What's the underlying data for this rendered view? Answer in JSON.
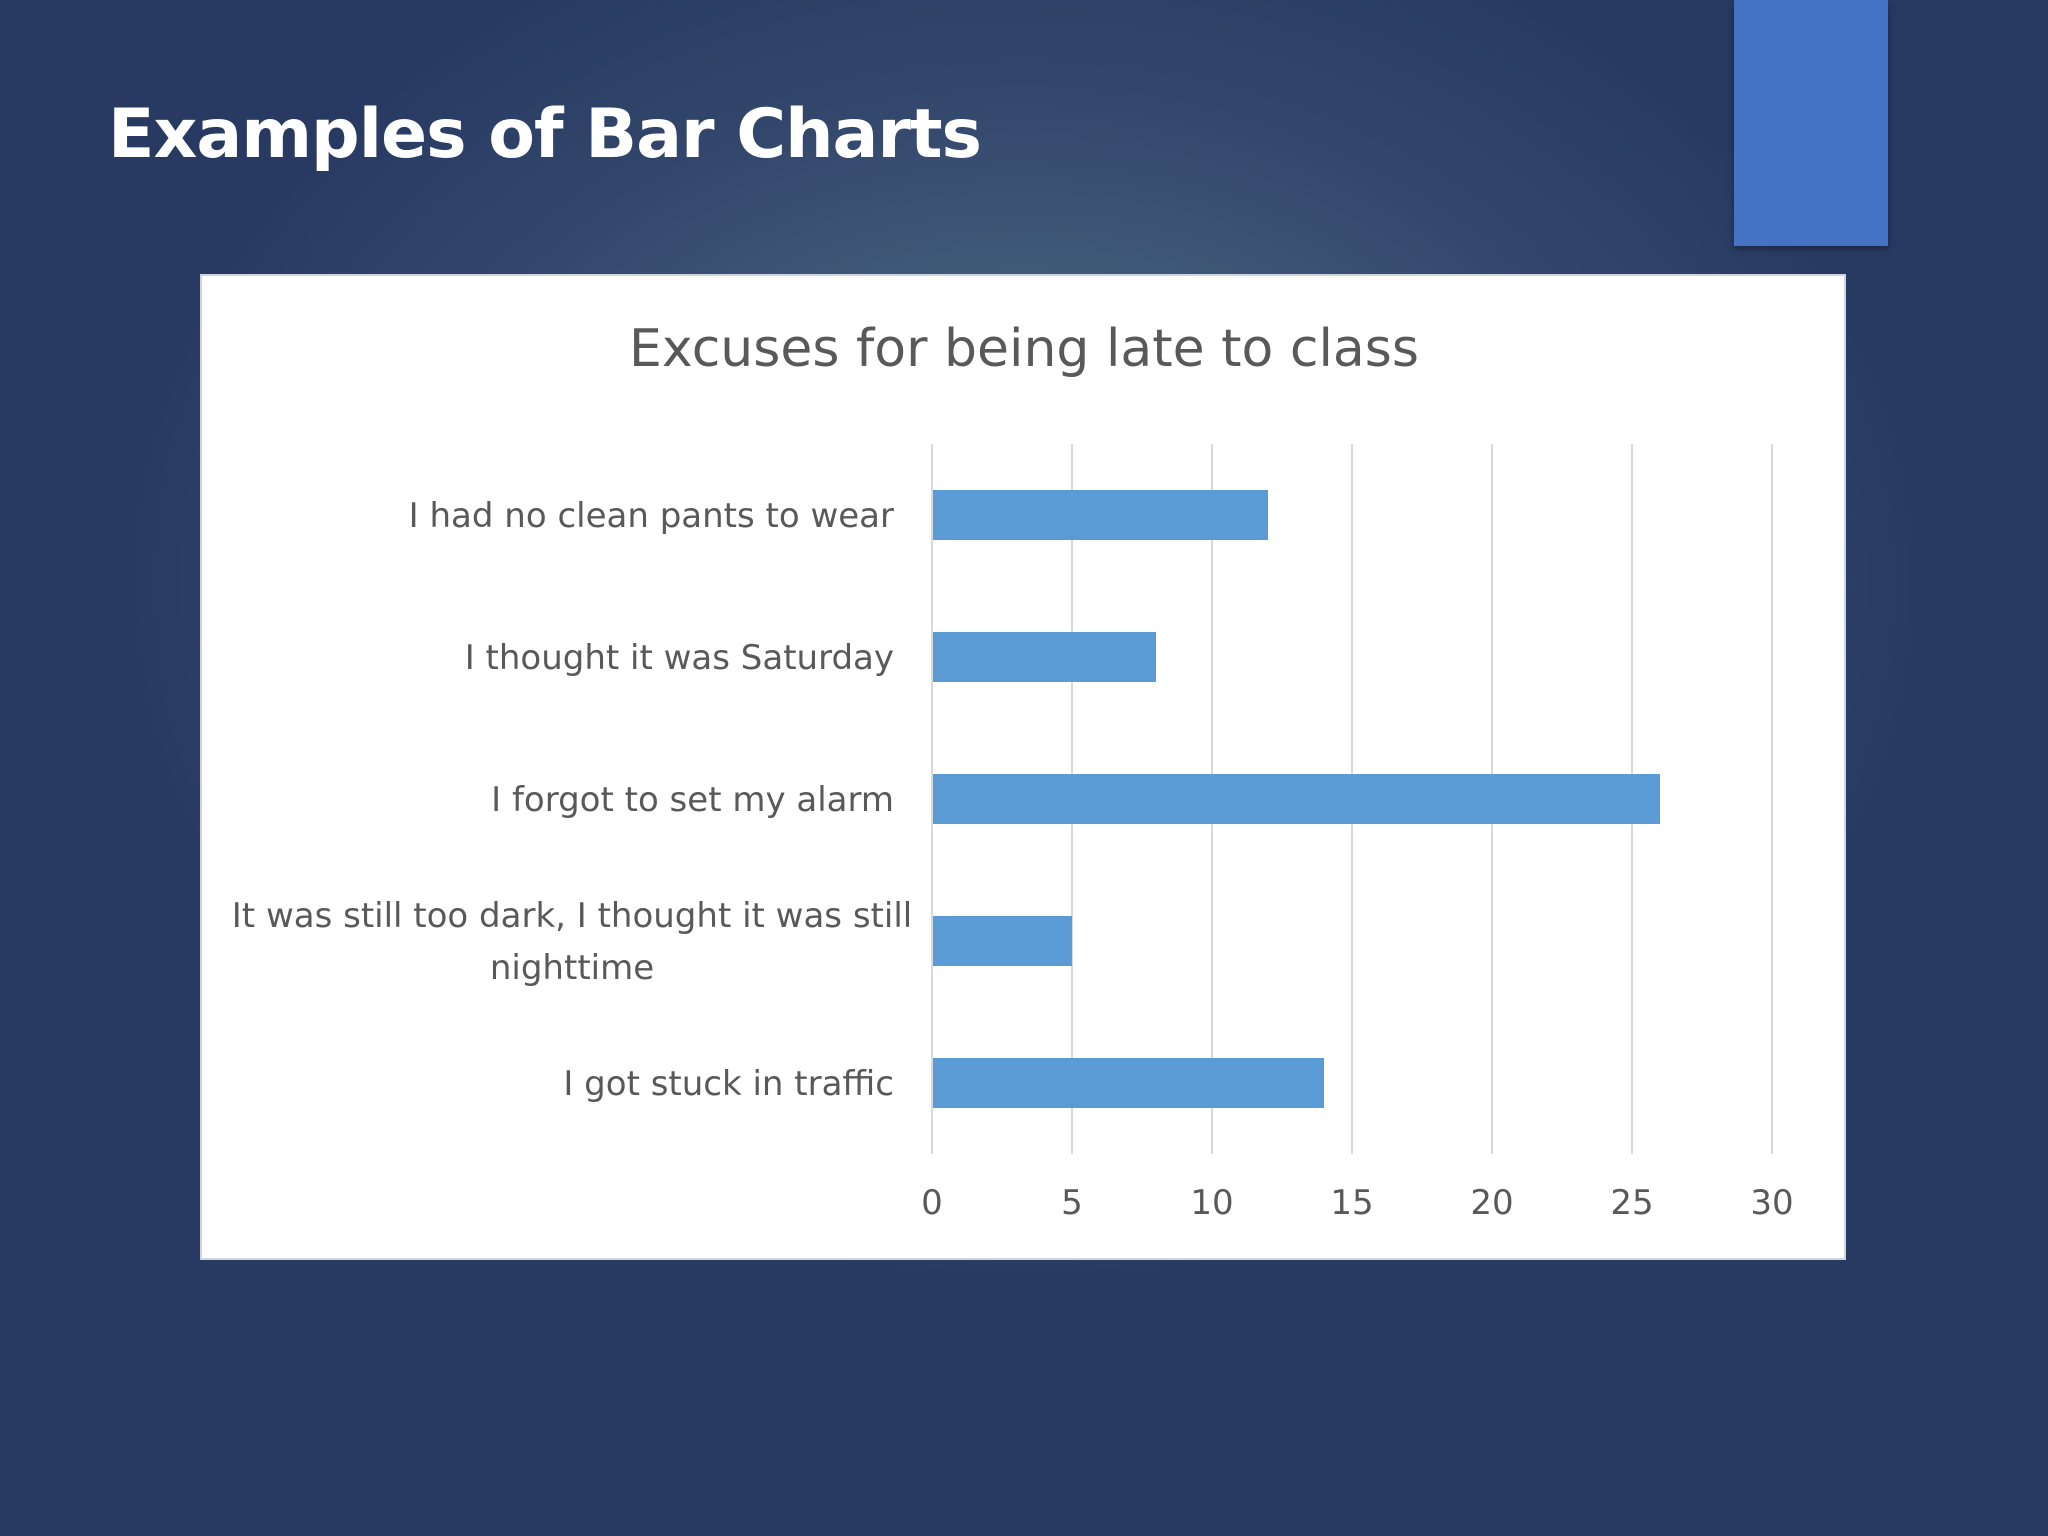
{
  "slide": {
    "title": "Examples of Bar Charts"
  },
  "colors": {
    "accent_block": "#4472c4",
    "bar": "#5b9bd5",
    "gridline": "#d9d9d9",
    "text": "#595959"
  },
  "chart_data": {
    "type": "bar",
    "orientation": "horizontal",
    "title": "Excuses for being late to class",
    "categories": [
      "I had no clean pants to wear",
      "I thought it was Saturday",
      "I forgot to set my alarm",
      "It was still too dark, I thought it was still nighttime",
      "I got stuck in traffic"
    ],
    "category_label_lines": [
      [
        "I had no clean pants to wear"
      ],
      [
        "I thought it was Saturday"
      ],
      [
        "I forgot to set my alarm"
      ],
      [
        "It was still too dark, I thought it was still",
        "nighttime"
      ],
      [
        "I got stuck in traffic"
      ]
    ],
    "values": [
      12,
      8,
      26,
      5,
      14
    ],
    "xlim": [
      0,
      30
    ],
    "xticks": [
      0,
      5,
      10,
      15,
      20,
      25,
      30
    ],
    "xlabel": "",
    "ylabel": "",
    "grid": "vertical",
    "legend": "none"
  }
}
